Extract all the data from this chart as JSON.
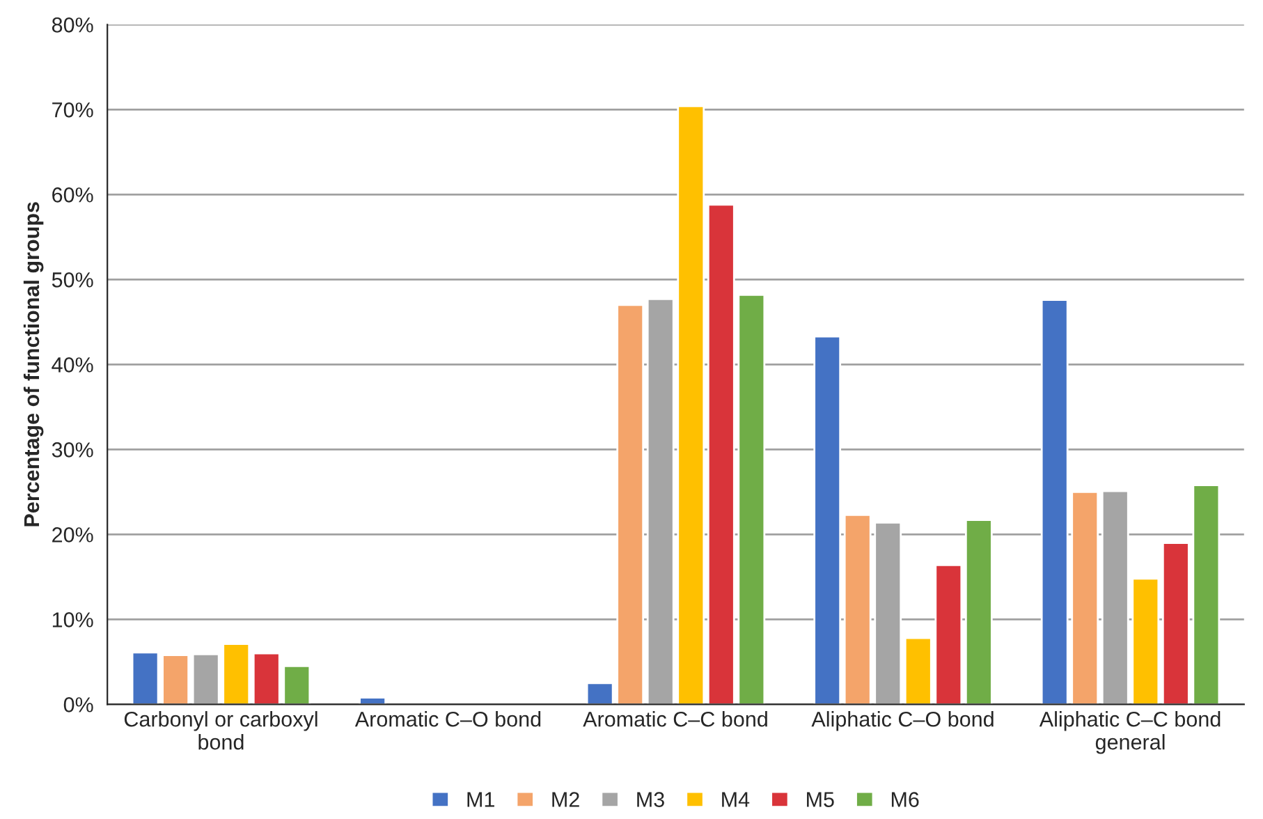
{
  "chart_data": {
    "type": "bar",
    "ylabel": "Percentage of functional groups",
    "categories": [
      "Carbonyl or carboxyl\nbond",
      "Aromatic C–O bond",
      "Aromatic C–C bond",
      "Aliphatic C–O bond",
      "Aliphatic C–C bond\ngeneral"
    ],
    "series": [
      {
        "name": "M1",
        "color": "#4472c4",
        "values": [
          6.1,
          0.8,
          2.5,
          43.3,
          47.6
        ]
      },
      {
        "name": "M2",
        "color": "#f4a46a",
        "values": [
          5.8,
          null,
          47.0,
          22.3,
          25.0
        ]
      },
      {
        "name": "M3",
        "color": "#a5a5a5",
        "values": [
          5.9,
          null,
          47.7,
          21.4,
          25.1
        ]
      },
      {
        "name": "M4",
        "color": "#ffc000",
        "values": [
          7.1,
          null,
          70.4,
          7.8,
          14.8
        ]
      },
      {
        "name": "M5",
        "color": "#d9343a",
        "values": [
          6.0,
          null,
          58.8,
          16.4,
          19.0
        ]
      },
      {
        "name": "M6",
        "color": "#70ad47",
        "values": [
          4.5,
          null,
          48.2,
          21.7,
          25.8
        ]
      }
    ],
    "ylim": [
      0,
      80
    ],
    "yticks": [
      {
        "value": 0,
        "label": "0%"
      },
      {
        "value": 10,
        "label": "10%"
      },
      {
        "value": 20,
        "label": "20%"
      },
      {
        "value": 30,
        "label": "30%"
      },
      {
        "value": 40,
        "label": "40%"
      },
      {
        "value": 50,
        "label": "50%"
      },
      {
        "value": 60,
        "label": "60%"
      },
      {
        "value": 70,
        "label": "70%"
      },
      {
        "value": 80,
        "label": "80%"
      }
    ],
    "grid": "y",
    "legend": "bottom"
  }
}
